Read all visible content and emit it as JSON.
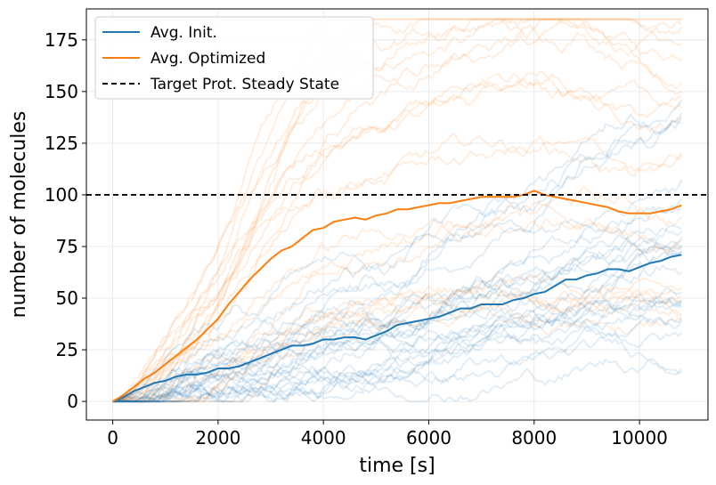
{
  "chart_data": {
    "type": "line",
    "xlabel": "time [s]",
    "ylabel": "number of molecules",
    "xlim": [
      -500,
      11300
    ],
    "ylim": [
      -9,
      190
    ],
    "x_ticks": [
      0,
      2000,
      4000,
      6000,
      8000,
      10000
    ],
    "y_ticks": [
      0,
      25,
      50,
      75,
      100,
      125,
      150,
      175
    ],
    "grid": true,
    "legend_position": "top-left",
    "colors": {
      "init": "#1f77b4",
      "optimized": "#ff7f0e",
      "target": "#000000"
    },
    "target_steady_state": 100,
    "legend": [
      {
        "label": "Avg. Init.",
        "style": "solid",
        "color": "#1f77b4"
      },
      {
        "label": "Avg. Optimized",
        "style": "solid",
        "color": "#ff7f0e"
      },
      {
        "label": "Target Prot. Steady State",
        "style": "dashed",
        "color": "#000000"
      }
    ],
    "series": [
      {
        "name": "Avg. Init.",
        "x": [
          0,
          200,
          400,
          600,
          800,
          1000,
          1200,
          1400,
          1600,
          1800,
          2000,
          2200,
          2400,
          2600,
          2800,
          3000,
          3200,
          3400,
          3600,
          3800,
          4000,
          4200,
          4400,
          4600,
          4800,
          5000,
          5200,
          5400,
          5600,
          5800,
          6000,
          6200,
          6400,
          6600,
          6800,
          7000,
          7200,
          7400,
          7600,
          7800,
          8000,
          8200,
          8400,
          8600,
          8800,
          9000,
          9200,
          9400,
          9600,
          9800,
          10000,
          10200,
          10400,
          10600,
          10800
        ],
        "y": [
          0,
          2,
          5,
          7,
          9,
          10,
          12,
          13,
          13,
          14,
          16,
          16,
          17,
          19,
          21,
          23,
          25,
          27,
          27,
          28,
          30,
          30,
          31,
          31,
          30,
          32,
          34,
          37,
          38,
          39,
          40,
          41,
          43,
          45,
          45,
          47,
          47,
          47,
          49,
          50,
          52,
          53,
          56,
          59,
          59,
          61,
          62,
          64,
          64,
          63,
          65,
          67,
          68,
          70,
          71
        ]
      },
      {
        "name": "Avg. Optimized",
        "x": [
          0,
          200,
          400,
          600,
          800,
          1000,
          1200,
          1400,
          1600,
          1800,
          2000,
          2200,
          2400,
          2600,
          2800,
          3000,
          3200,
          3400,
          3600,
          3800,
          4000,
          4200,
          4400,
          4600,
          4800,
          5000,
          5200,
          5400,
          5600,
          5800,
          6000,
          6200,
          6400,
          6600,
          6800,
          7000,
          7200,
          7400,
          7600,
          7800,
          8000,
          8200,
          8400,
          8600,
          8800,
          9000,
          9200,
          9400,
          9600,
          9800,
          10000,
          10200,
          10400,
          10600,
          10800
        ],
        "y": [
          0,
          3,
          7,
          11,
          14,
          18,
          22,
          26,
          30,
          35,
          40,
          47,
          53,
          59,
          64,
          69,
          73,
          75,
          79,
          83,
          84,
          87,
          88,
          89,
          88,
          90,
          91,
          93,
          93,
          94,
          95,
          96,
          96,
          97,
          98,
          99,
          99,
          99,
          99,
          100,
          102,
          100,
          99,
          98,
          97,
          96,
          95,
          94,
          92,
          91,
          91,
          91,
          92,
          93,
          95
        ]
      }
    ]
  }
}
